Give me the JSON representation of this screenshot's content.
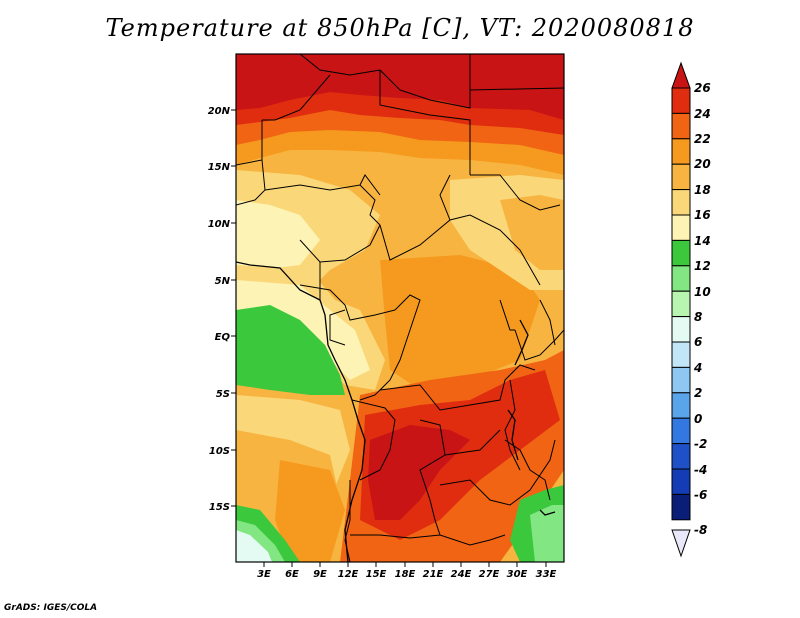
{
  "title": "Temperature at 850hPa [C], VT: 2020080818",
  "credit": "GrADS: IGES/COLA",
  "map": {
    "lat_labels": [
      "20N",
      "15N",
      "10N",
      "5N",
      "EQ",
      "5S",
      "10S",
      "15S"
    ],
    "lon_labels": [
      "3E",
      "6E",
      "9E",
      "12E",
      "15E",
      "18E",
      "21E",
      "24E",
      "27E",
      "30E",
      "33E"
    ]
  },
  "colorbar": {
    "labels": [
      "26",
      "24",
      "22",
      "20",
      "18",
      "16",
      "14",
      "12",
      "10",
      "8",
      "6",
      "4",
      "2",
      "0",
      "-2",
      "-4",
      "-6",
      "-8"
    ],
    "colors": {
      "c26": "#c81414",
      "c24": "#e02d10",
      "c22": "#f06414",
      "c20": "#f59a1e",
      "c18": "#f8b440",
      "c16": "#fad87a",
      "c14": "#fdf3b4",
      "c12": "#3cc83c",
      "c10": "#82e682",
      "c8": "#b8f5b0",
      "c6": "#e4fbf4",
      "c4": "#c2e6f8",
      "c2": "#8ec8f2",
      "c0": "#5aa4ea",
      "cm2": "#3278e0",
      "cm4": "#1e50c8",
      "cm6": "#143cb4",
      "cm8": "#0a1e78",
      "under": "#e8e8f8"
    }
  }
}
